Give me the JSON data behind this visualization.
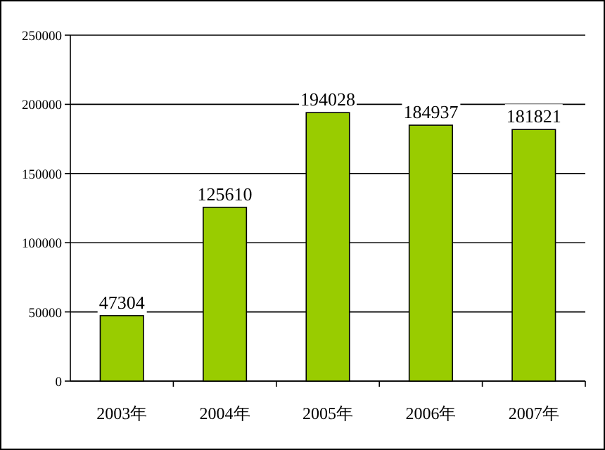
{
  "chart_data": {
    "type": "bar",
    "categories": [
      "2003年",
      "2004年",
      "2005年",
      "2006年",
      "2007年"
    ],
    "values": [
      47304,
      125610,
      194028,
      184937,
      181821
    ],
    "color": "#99cc00",
    "ylim": [
      0,
      250000
    ],
    "yticks": [
      0,
      50000,
      100000,
      150000,
      200000,
      250000
    ],
    "grid": "y",
    "data_labels": true
  }
}
